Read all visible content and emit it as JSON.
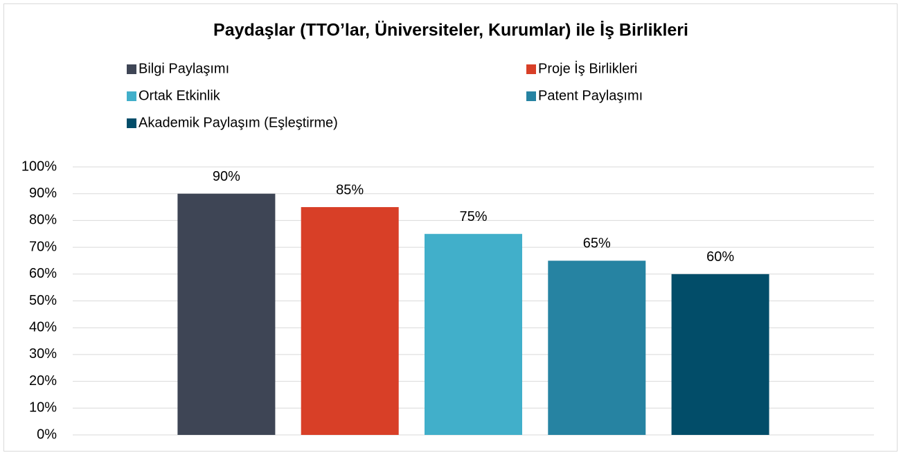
{
  "chart_data": {
    "type": "bar",
    "title": "Paydaşlar  (TTO’lar, Üniversiteler, Kurumlar) ile İş Birlikleri",
    "categories": [
      null
    ],
    "series": [
      {
        "name": "Bilgi Paylaşımı",
        "color": "#3e4555",
        "values": [
          90
        ],
        "value_labels": [
          "90%"
        ]
      },
      {
        "name": "Proje İş Birlikleri",
        "color": "#d83f27",
        "values": [
          85
        ],
        "value_labels": [
          "85%"
        ]
      },
      {
        "name": "Ortak Etkinlik",
        "color": "#41afca",
        "values": [
          75
        ],
        "value_labels": [
          "75%"
        ]
      },
      {
        "name": "Patent Paylaşımı",
        "color": "#2683a2",
        "values": [
          65
        ],
        "value_labels": [
          "65%"
        ]
      },
      {
        "name": "Akademik Paylaşım (Eşleştirme)",
        "color": "#024d69",
        "values": [
          60
        ],
        "value_labels": [
          "60%"
        ]
      }
    ],
    "ylim": [
      0,
      100
    ],
    "yticks": [
      {
        "value": 0,
        "label": "0%"
      },
      {
        "value": 10,
        "label": "10%"
      },
      {
        "value": 20,
        "label": "20%"
      },
      {
        "value": 30,
        "label": "30%"
      },
      {
        "value": 40,
        "label": "40%"
      },
      {
        "value": 50,
        "label": "50%"
      },
      {
        "value": 60,
        "label": "60%"
      },
      {
        "value": 70,
        "label": "70%"
      },
      {
        "value": 80,
        "label": "80%"
      },
      {
        "value": 90,
        "label": "90%"
      },
      {
        "value": 100,
        "label": "100%"
      }
    ],
    "grid": true,
    "legend": "top"
  }
}
